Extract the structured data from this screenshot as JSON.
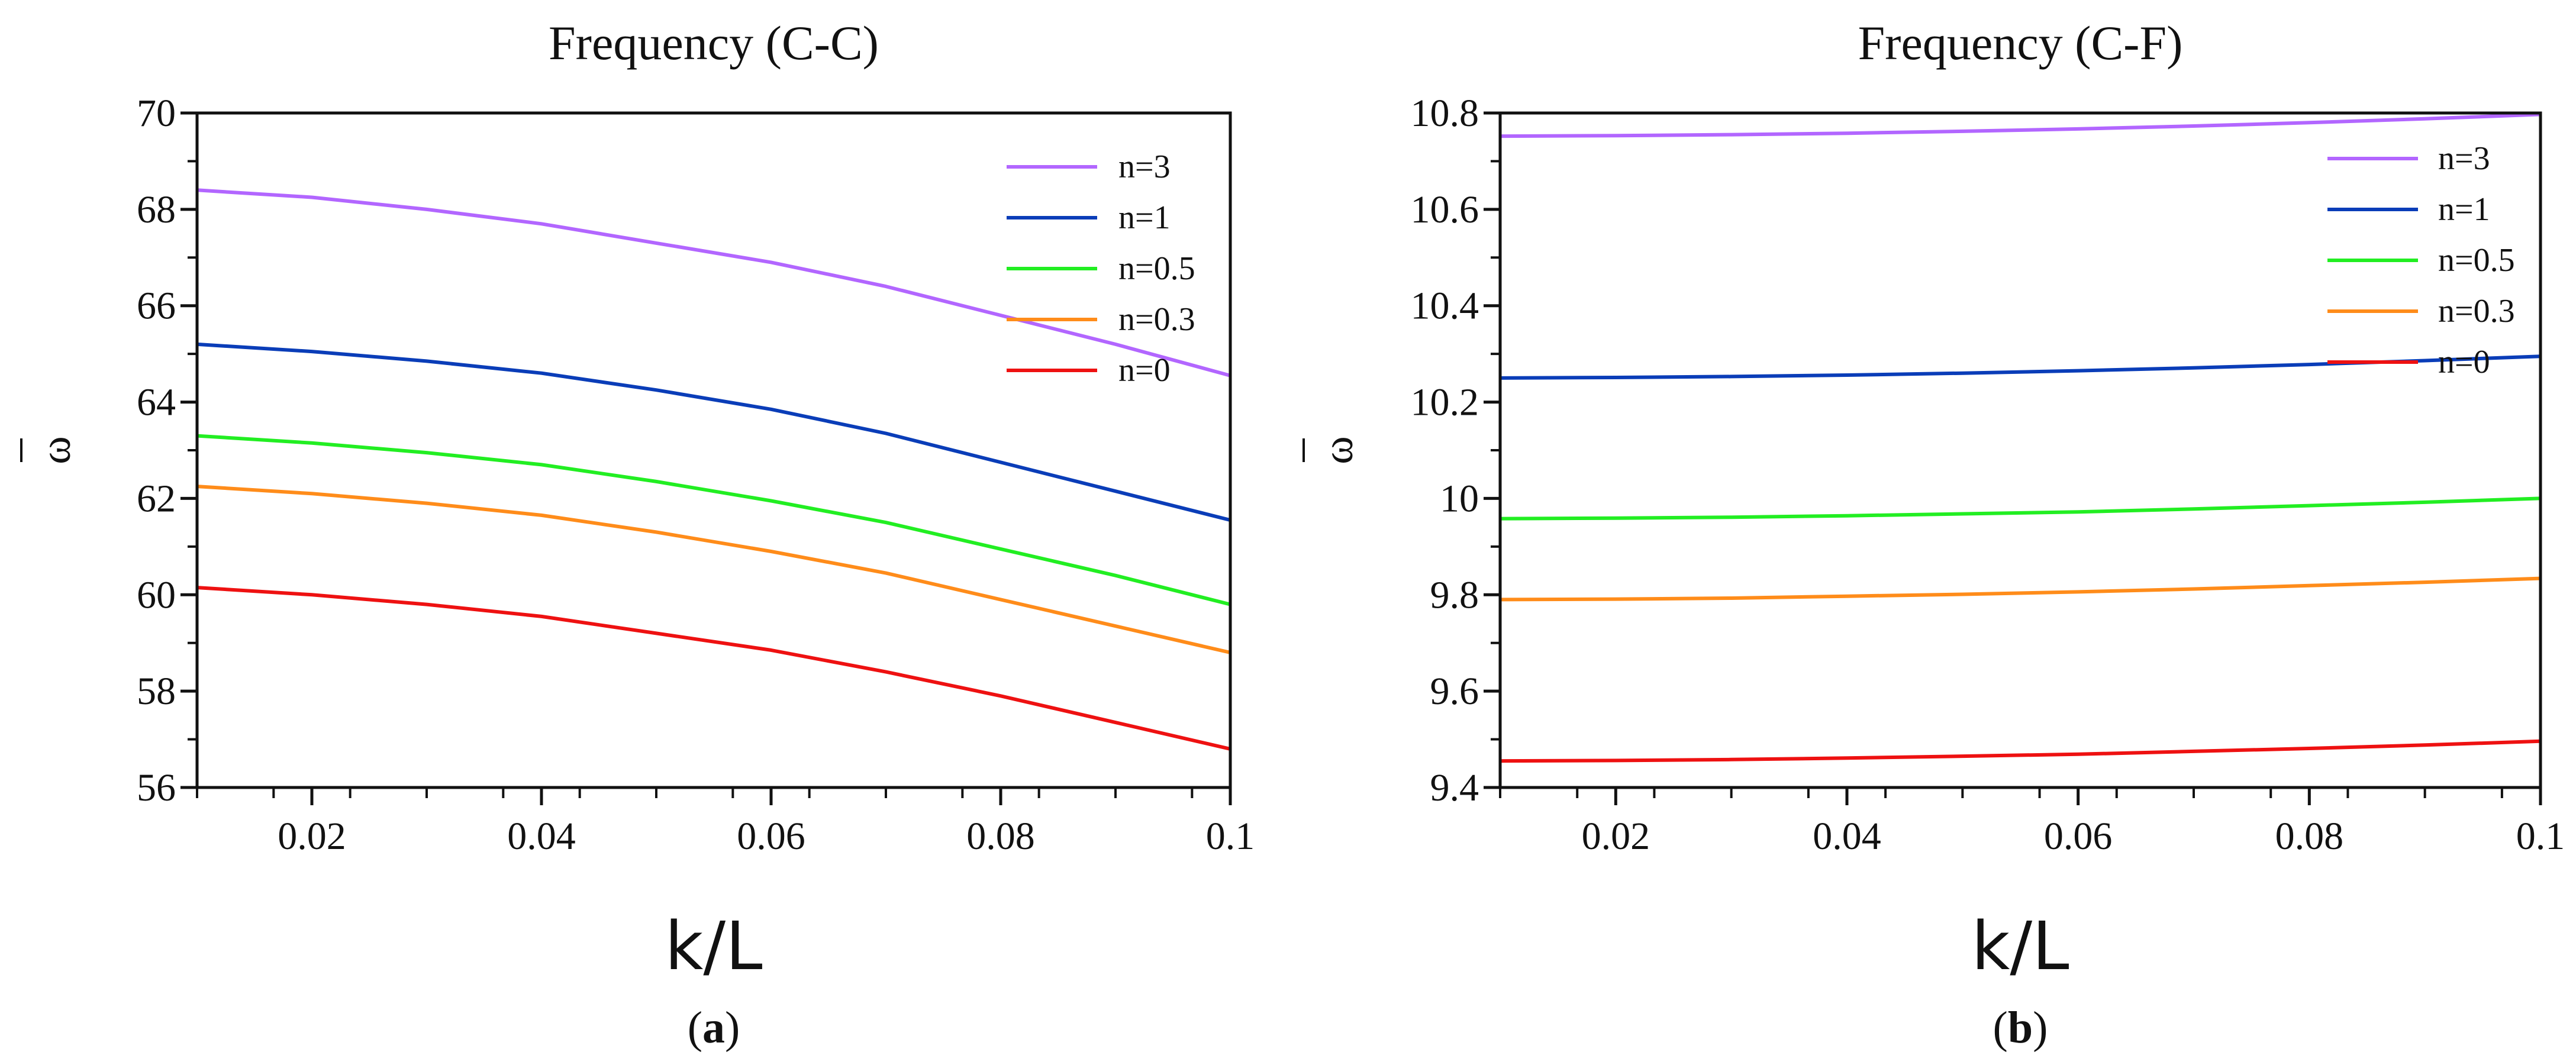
{
  "chart_data": [
    {
      "type": "line",
      "title": "Frequency (C-C)",
      "xlabel": "k/L",
      "ylabel": "ω",
      "caption": "(a)",
      "caption_letter": "a",
      "xlim": [
        0.01,
        0.1
      ],
      "ylim": [
        56,
        70
      ],
      "xticks": [
        0.02,
        0.04,
        0.06,
        0.08,
        0.1
      ],
      "xtick_labels": [
        "0.02",
        "0.04",
        "0.06",
        "0.08",
        "0.1"
      ],
      "yticks": [
        56,
        58,
        60,
        62,
        64,
        66,
        68,
        70
      ],
      "ytick_labels": [
        "56",
        "58",
        "60",
        "62",
        "64",
        "66",
        "68",
        "70"
      ],
      "x": [
        0.01,
        0.02,
        0.03,
        0.04,
        0.05,
        0.06,
        0.07,
        0.08,
        0.09,
        0.1
      ],
      "series": [
        {
          "name": "n=3",
          "color": "#b266ff",
          "values": [
            68.4,
            68.25,
            68.0,
            67.7,
            67.3,
            66.9,
            66.4,
            65.8,
            65.2,
            64.55
          ]
        },
        {
          "name": "n=1",
          "color": "#0a3db8",
          "values": [
            65.2,
            65.05,
            64.85,
            64.6,
            64.25,
            63.85,
            63.35,
            62.75,
            62.15,
            61.55
          ]
        },
        {
          "name": "n=0.5",
          "color": "#22ee22",
          "values": [
            63.3,
            63.15,
            62.95,
            62.7,
            62.35,
            61.95,
            61.5,
            60.95,
            60.4,
            59.8
          ]
        },
        {
          "name": "n=0.3",
          "color": "#ff8c1a",
          "values": [
            62.25,
            62.1,
            61.9,
            61.65,
            61.3,
            60.9,
            60.45,
            59.9,
            59.35,
            58.8
          ]
        },
        {
          "name": "n=0",
          "color": "#ee1111",
          "values": [
            60.15,
            60.0,
            59.8,
            59.55,
            59.2,
            58.85,
            58.4,
            57.9,
            57.35,
            56.8
          ]
        }
      ],
      "legend_position": "top-right",
      "grid": false
    },
    {
      "type": "line",
      "title": "Frequency (C-F)",
      "xlabel": "k/L",
      "ylabel": "ω",
      "caption": "(b)",
      "caption_letter": "b",
      "xlim": [
        0.01,
        0.1
      ],
      "ylim": [
        9.4,
        10.8
      ],
      "xticks": [
        0.02,
        0.04,
        0.06,
        0.08,
        0.1
      ],
      "xtick_labels": [
        "0.02",
        "0.04",
        "0.06",
        "0.08",
        "0.1"
      ],
      "yticks": [
        9.4,
        9.6,
        9.8,
        10.0,
        10.2,
        10.4,
        10.6,
        10.8
      ],
      "ytick_labels": [
        "9.4",
        "9.6",
        "9.8",
        "10",
        "10.2",
        "10.4",
        "10.6",
        "10.8"
      ],
      "x": [
        0.01,
        0.02,
        0.03,
        0.04,
        0.05,
        0.06,
        0.07,
        0.08,
        0.09,
        0.1
      ],
      "series": [
        {
          "name": "n=3",
          "color": "#b266ff",
          "values": [
            10.752,
            10.753,
            10.755,
            10.758,
            10.762,
            10.767,
            10.773,
            10.78,
            10.788,
            10.797
          ]
        },
        {
          "name": "n=1",
          "color": "#0a3db8",
          "values": [
            10.25,
            10.251,
            10.253,
            10.256,
            10.26,
            10.265,
            10.271,
            10.278,
            10.286,
            10.295
          ]
        },
        {
          "name": "n=0.5",
          "color": "#22ee22",
          "values": [
            9.958,
            9.959,
            9.961,
            9.964,
            9.968,
            9.972,
            9.978,
            9.985,
            9.992,
            10.0
          ]
        },
        {
          "name": "n=0.3",
          "color": "#ff8c1a",
          "values": [
            9.79,
            9.791,
            9.793,
            9.797,
            9.801,
            9.806,
            9.812,
            9.819,
            9.826,
            9.834
          ]
        },
        {
          "name": "n=0",
          "color": "#ee1111",
          "values": [
            9.455,
            9.456,
            9.458,
            9.461,
            9.465,
            9.469,
            9.475,
            9.481,
            9.488,
            9.496
          ]
        }
      ],
      "legend_position": "top-right",
      "grid": false
    }
  ]
}
